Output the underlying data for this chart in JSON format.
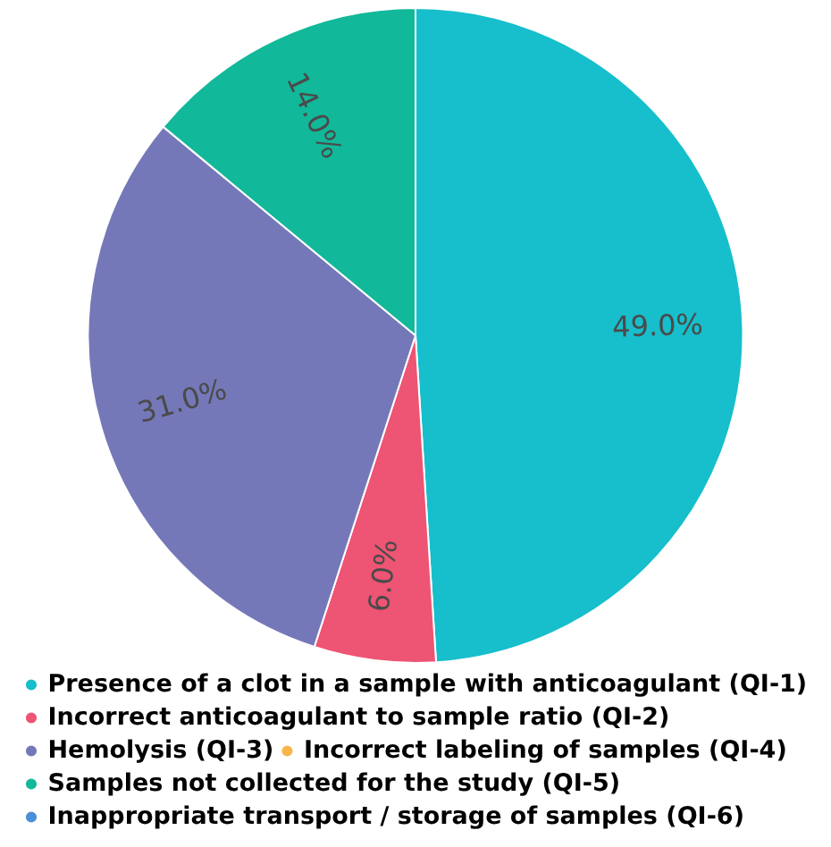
{
  "chart_data": {
    "type": "pie",
    "categories": [
      "Presence of a clot in a sample with anticoagulant (QI-1)",
      "Incorrect anticoagulant to sample ratio (QI-2)",
      "Hemolysis (QI-3)",
      "Incorrect labeling of samples (QI-4)",
      "Samples not collected for the study (QI-5)",
      "Inappropriate transport / storage of samples (QI-6)"
    ],
    "values": [
      49,
      6,
      31,
      0,
      14,
      0
    ],
    "colors": [
      "#17becb",
      "#ee5473",
      "#7578b8",
      "#f8b64c",
      "#12b89a",
      "#4a8fd8"
    ],
    "value_labels": [
      "49.0%",
      "6.0%",
      "31.0%",
      null,
      "14.0%",
      null
    ],
    "legend": "bottom"
  }
}
